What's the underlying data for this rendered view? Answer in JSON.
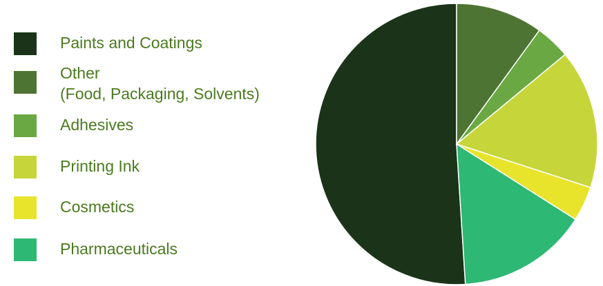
{
  "chart_data": {
    "type": "pie",
    "legend_position": "left",
    "text_color": "#4a7a1e",
    "slices": [
      {
        "label": "Paints and Coatings",
        "value": 51,
        "color": "#1b3419"
      },
      {
        "label": "Pharmaceuticals",
        "value": 15,
        "color": "#2db874"
      },
      {
        "label": "Cosmetics",
        "value": 4,
        "color": "#e8e42c"
      },
      {
        "label": "Printing Ink",
        "value": 16,
        "color": "#c6d63a"
      },
      {
        "label": "Adhesives",
        "value": 4,
        "color": "#6aa843"
      },
      {
        "label": "Other",
        "sublabel": "(Food, Packaging, Solvents)",
        "value": 10,
        "color": "#4e7434"
      }
    ],
    "legend_order": [
      {
        "label": "Paints and Coatings",
        "color": "#1b3419"
      },
      {
        "label": "Other",
        "sublabel": "(Food, Packaging, Solvents)",
        "color": "#4e7434"
      },
      {
        "label": "Adhesives",
        "color": "#6aa843"
      },
      {
        "label": "Printing Ink",
        "color": "#c6d63a"
      },
      {
        "label": "Cosmetics",
        "color": "#e8e42c"
      },
      {
        "label": "Pharmaceuticals",
        "color": "#2db874"
      }
    ]
  }
}
